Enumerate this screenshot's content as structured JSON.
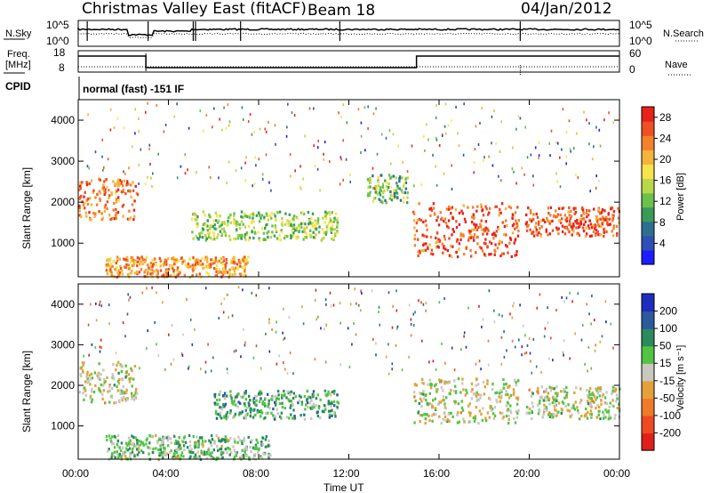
{
  "header": {
    "title": "Christmas Valley East (fitACF)",
    "beam": "Beam 18",
    "date": "04/Jan/2012"
  },
  "top_panels": {
    "nsky_label": "N.Sky",
    "nsearch_label": "N.Search",
    "freq_label_1": "Freq.",
    "freq_label_2": "[MHz]",
    "nave_label": "Nave",
    "cpid_label": "CPID",
    "cpid_text": "normal (fast) -151 IF",
    "noise_ticks_left": [
      "10^5",
      "10^0"
    ],
    "noise_ticks_right": [
      "10^5",
      "10^0"
    ],
    "freq_ticks": [
      "18",
      "8"
    ],
    "nave_ticks": [
      "60",
      "0"
    ]
  },
  "chart_data": [
    {
      "type": "heatmap",
      "name": "power",
      "ylabel": "Slant Range [km]",
      "xlabel": "Time UT",
      "xlim": [
        "00:00",
        "24:00"
      ],
      "ylim": [
        180,
        4500
      ],
      "x_ticks": [
        "00:00",
        "04:00",
        "08:00",
        "12:00",
        "16:00",
        "20:00",
        "00:00"
      ],
      "y_ticks": [
        1000,
        2000,
        3000,
        4000
      ],
      "colorbar": {
        "label": "Power [dB]",
        "ticks": [
          4,
          8,
          12,
          16,
          20,
          24,
          28
        ],
        "range": [
          0,
          30
        ],
        "colors": [
          "#1c1cff",
          "#2f4fb5",
          "#2e6f8f",
          "#3a9a5a",
          "#6cc14b",
          "#b8d84a",
          "#f7e34a",
          "#f5b33a",
          "#f3812b",
          "#ef4f22",
          "#e8211a"
        ]
      },
      "regions": [
        {
          "t_start": 0.0,
          "t_end": 2.6,
          "r_min": 1600,
          "r_max": 2600,
          "power": 24
        },
        {
          "t_start": 1.2,
          "t_end": 7.5,
          "r_min": 200,
          "r_max": 700,
          "power": 22
        },
        {
          "t_start": 5.0,
          "t_end": 11.5,
          "r_min": 1100,
          "r_max": 1800,
          "power": 14
        },
        {
          "t_start": 12.8,
          "t_end": 14.6,
          "r_min": 2000,
          "r_max": 2700,
          "power": 12
        },
        {
          "t_start": 14.8,
          "t_end": 19.5,
          "r_min": 700,
          "r_max": 2000,
          "power": 26
        },
        {
          "t_start": 19.8,
          "t_end": 24.0,
          "r_min": 1200,
          "r_max": 1900,
          "power": 26
        }
      ]
    },
    {
      "type": "heatmap",
      "name": "velocity",
      "ylabel": "Slant Range [km]",
      "xlabel": "Time UT",
      "xlim": [
        "00:00",
        "24:00"
      ],
      "ylim": [
        180,
        4500
      ],
      "x_ticks": [
        "00:00",
        "04:00",
        "08:00",
        "12:00",
        "16:00",
        "20:00",
        "00:00"
      ],
      "y_ticks": [
        1000,
        2000,
        3000,
        4000
      ],
      "colorbar": {
        "label": "Velocity [m s⁻¹]",
        "ticks": [
          200,
          100,
          50,
          15,
          -15,
          -50,
          -100,
          -200
        ],
        "colors": [
          "#1e2dbf",
          "#2c5a9e",
          "#2b8a5e",
          "#52c443",
          "#c8c8c0",
          "#e3a13a",
          "#ef7a2a",
          "#ee4a22",
          "#e01f1a"
        ]
      },
      "regions": [
        {
          "t_start": 0.0,
          "t_end": 2.6,
          "r_min": 1600,
          "r_max": 2600,
          "velocity": 0
        },
        {
          "t_start": 1.2,
          "t_end": 8.5,
          "r_min": 200,
          "r_max": 800,
          "velocity": 40
        },
        {
          "t_start": 6.0,
          "t_end": 11.5,
          "r_min": 1200,
          "r_max": 1900,
          "velocity": 60
        },
        {
          "t_start": 14.8,
          "t_end": 19.5,
          "r_min": 1100,
          "r_max": 2200,
          "velocity": 0
        },
        {
          "t_start": 19.8,
          "t_end": 24.0,
          "r_min": 1200,
          "r_max": 2000,
          "velocity": 0
        }
      ]
    }
  ]
}
